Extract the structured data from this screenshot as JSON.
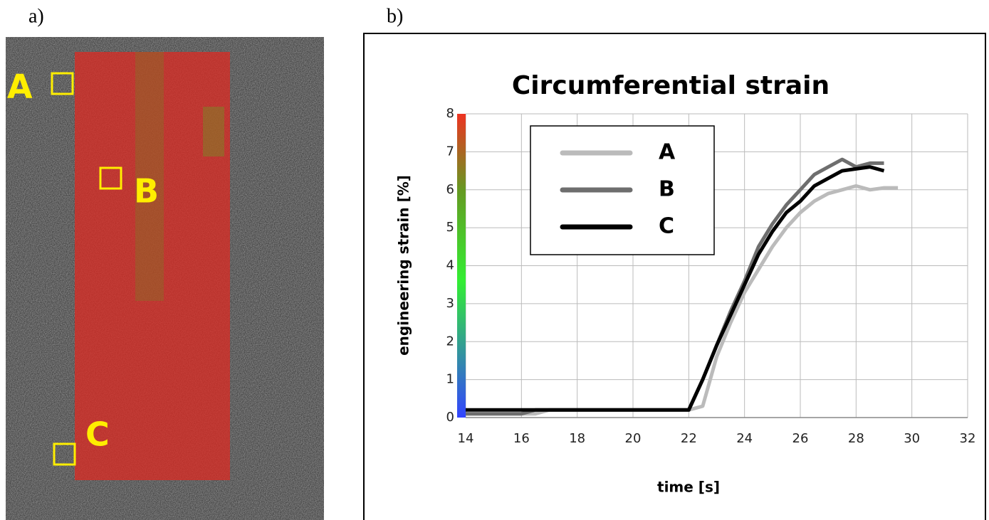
{
  "figure_labels": [
    "a)",
    "b)"
  ],
  "image": {
    "labels": [
      "A",
      "B",
      "C"
    ]
  },
  "chart_data": {
    "type": "line",
    "title": "Circumferential strain",
    "xlabel": "time [s]",
    "ylabel": "engineering strain [%]",
    "x": [
      14,
      14.5,
      15,
      15.5,
      16,
      16.5,
      17,
      17.5,
      18,
      18.5,
      19,
      19.5,
      20,
      20.5,
      21,
      21.5,
      22,
      22.5,
      23,
      23.5,
      24,
      24.5,
      25,
      25.5,
      26,
      26.5,
      27,
      27.5,
      28,
      28.5,
      29,
      29.5
    ],
    "series": [
      {
        "name": "A",
        "color": "#bbbbbb",
        "values": [
          0.1,
          0.1,
          0.1,
          0.1,
          0.1,
          0.1,
          0.2,
          0.2,
          0.2,
          0.2,
          0.2,
          0.2,
          0.2,
          0.2,
          0.2,
          0.2,
          0.2,
          0.3,
          1.6,
          2.5,
          3.3,
          3.9,
          4.5,
          5.0,
          5.4,
          5.7,
          5.9,
          6.0,
          6.1,
          6.0,
          6.05,
          6.05
        ]
      },
      {
        "name": "B",
        "color": "#6e6e6e",
        "values": [
          0.1,
          0.1,
          0.1,
          0.1,
          0.1,
          0.2,
          0.2,
          0.2,
          0.2,
          0.2,
          0.2,
          0.2,
          0.2,
          0.2,
          0.2,
          0.2,
          0.2,
          1.0,
          1.9,
          2.8,
          3.6,
          4.5,
          5.1,
          5.6,
          6.0,
          6.4,
          6.6,
          6.8,
          6.6,
          6.7,
          6.7,
          null
        ]
      },
      {
        "name": "C",
        "color": "#000000",
        "values": [
          0.2,
          0.2,
          0.2,
          0.2,
          0.2,
          0.2,
          0.2,
          0.2,
          0.2,
          0.2,
          0.2,
          0.2,
          0.2,
          0.2,
          0.2,
          0.2,
          0.2,
          1.0,
          1.9,
          2.7,
          3.5,
          4.3,
          4.9,
          5.4,
          5.7,
          6.1,
          6.3,
          6.5,
          6.55,
          6.6,
          6.5,
          null
        ]
      }
    ],
    "xlim": [
      14,
      32
    ],
    "xticks": [
      14,
      16,
      18,
      20,
      22,
      24,
      26,
      28,
      30,
      32
    ],
    "ylim": [
      0,
      8
    ],
    "yticks": [
      0,
      1,
      2,
      3,
      4,
      5,
      6,
      7,
      8
    ],
    "grid": true,
    "legend": "upper left"
  }
}
